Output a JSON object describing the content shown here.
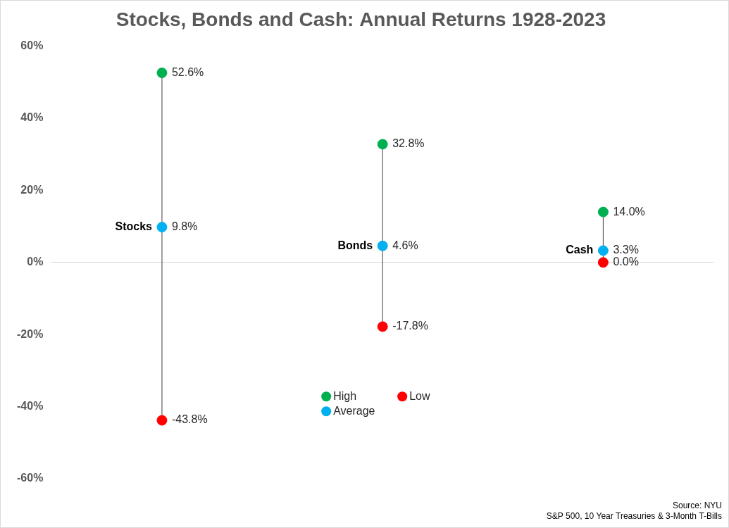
{
  "chart_data": {
    "type": "dot",
    "title": "Stocks, Bonds and Cash: Annual Returns 1928-2023",
    "categories": [
      "Stocks",
      "Bonds",
      "Cash"
    ],
    "series": [
      {
        "name": "High",
        "color": "#00b050",
        "values": [
          52.6,
          32.8,
          14.0
        ],
        "value_labels": [
          "52.6%",
          "32.8%",
          "14.0%"
        ]
      },
      {
        "name": "Average",
        "color": "#00b0f0",
        "values": [
          9.8,
          4.6,
          3.3
        ],
        "value_labels": [
          "9.8%",
          "4.6%",
          "3.3%"
        ]
      },
      {
        "name": "Low",
        "color": "#ff0000",
        "values": [
          -43.8,
          -17.8,
          0.0
        ],
        "value_labels": [
          "-43.8%",
          "-17.8%",
          "0.0%"
        ]
      }
    ],
    "ylim": [
      -60,
      60
    ],
    "yticks": [
      {
        "value": -60,
        "label": "-60%"
      },
      {
        "value": -40,
        "label": "-40%"
      },
      {
        "value": -20,
        "label": "-20%"
      },
      {
        "value": 0,
        "label": "0%"
      },
      {
        "value": 20,
        "label": "20%"
      },
      {
        "value": 40,
        "label": "40%"
      },
      {
        "value": 60,
        "label": "60%"
      }
    ],
    "grid": false,
    "legend": "bottom",
    "data_labels": true,
    "tick_labels": "y",
    "annotations": [
      "Source: NYU",
      "S&P 500, 10 Year Treasuries & 3-Month T-Bills"
    ]
  }
}
